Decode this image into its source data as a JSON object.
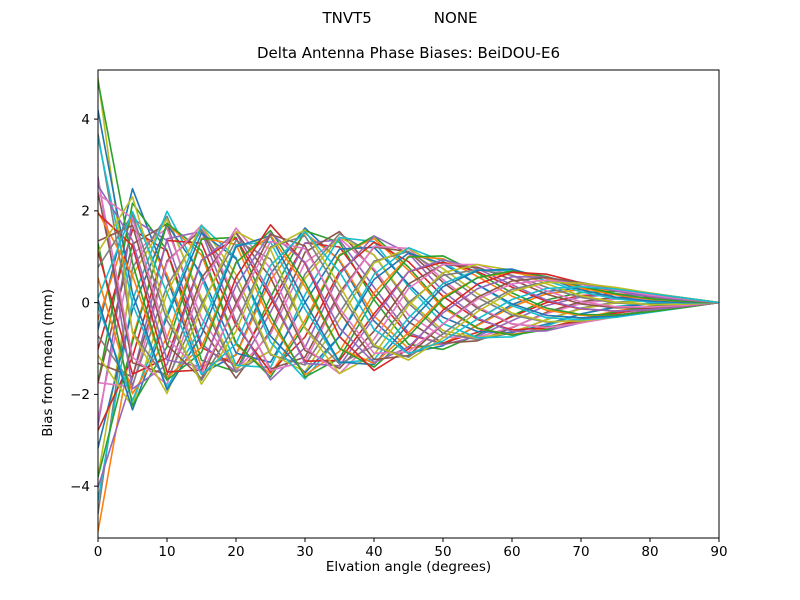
{
  "chart_data": {
    "type": "line",
    "suptitle": "TNVT5             NONE",
    "title": "Delta Antenna Phase Biases: BeiDOU-E6",
    "xlabel": "Elvation angle (degrees)",
    "ylabel": "Bias from mean (mm)",
    "xlim": [
      0,
      90
    ],
    "ylim": [
      -5.13,
      5.07
    ],
    "x_ticks": [
      0,
      10,
      20,
      30,
      40,
      50,
      60,
      70,
      80,
      90
    ],
    "y_ticks": [
      -4,
      -2,
      0,
      2,
      4
    ],
    "grid": false,
    "legend": null,
    "n_series": 40,
    "palette": [
      "#1f77b4",
      "#ff7f0e",
      "#2ca02c",
      "#d62728",
      "#9467bd",
      "#8c564b",
      "#e377c2",
      "#7f7f7f",
      "#bcbd22",
      "#17becf"
    ],
    "x_deg": [
      0,
      5,
      10,
      15,
      20,
      25,
      30,
      35,
      40,
      45,
      50,
      55,
      60,
      65,
      70,
      75,
      80,
      85,
      90
    ],
    "envelope_mm": [
      2.3,
      2.18,
      2.02,
      1.82,
      1.68,
      1.7,
      1.7,
      1.6,
      1.5,
      1.28,
      1.02,
      0.86,
      0.76,
      0.62,
      0.46,
      0.34,
      0.22,
      0.11,
      0.0
    ],
    "phase_rad": [
      14.2,
      12.67,
      11.22,
      9.86,
      8.59,
      7.41,
      6.31,
      5.3,
      4.38,
      3.55,
      2.8,
      2.15,
      1.58,
      1.1,
      0.7,
      0.39,
      0.18,
      0.04,
      0.0
    ],
    "spike": {
      "width_deg": 6.5,
      "exponent": 1.3
    },
    "values_note": "40 unlabeled overlapping series converging to 0 mm at 90 deg; each curve approximated by y(e)=s*env(e)*cos(phase(e)+p)*(1+k*max(0,1-e/width)^exp) sampled on x_deg",
    "series": [
      {
        "p": 0.05,
        "s": 0.96,
        "k": 1.35
      },
      {
        "p": 0.117,
        "s": 0.9,
        "k": 0
      },
      {
        "p": 0.374,
        "s": 1.0,
        "k": 0.8
      },
      {
        "p": 0.471,
        "s": 0.87,
        "k": 0
      },
      {
        "p": 0.578,
        "s": 0.93,
        "k": 1.1
      },
      {
        "p": 0.825,
        "s": 0.98,
        "k": 0
      },
      {
        "p": 0.922,
        "s": 0.88,
        "k": 0.5
      },
      {
        "p": 1.149,
        "s": 0.95,
        "k": 1.25
      },
      {
        "p": 1.197,
        "s": 0.91,
        "k": 0.9
      },
      {
        "p": 1.443,
        "s": 0.99,
        "k": 0.9
      },
      {
        "p": 1.541,
        "s": 0.86,
        "k": 0.6
      },
      {
        "p": 1.787,
        "s": 0.94,
        "k": 1.4
      },
      {
        "p": 1.835,
        "s": 0.97,
        "k": 0.8
      },
      {
        "p": 2.062,
        "s": 0.89,
        "k": 0.6
      },
      {
        "p": 2.158,
        "s": 1.0,
        "k": 1.2
      },
      {
        "p": 2.405,
        "s": 0.92,
        "k": 0
      },
      {
        "p": 2.453,
        "s": 0.96,
        "k": 0.35
      },
      {
        "p": 2.709,
        "s": 0.87,
        "k": 0
      },
      {
        "p": 2.807,
        "s": 0.93,
        "k": 1.0
      },
      {
        "p": 3.043,
        "s": 0.98,
        "k": 0
      },
      {
        "p": 3.091,
        "s": 0.9,
        "k": 1.3
      },
      {
        "p": 3.328,
        "s": 0.95,
        "k": 0
      },
      {
        "p": 3.415,
        "s": 1.0,
        "k": 0.7
      },
      {
        "p": 3.662,
        "s": 0.88,
        "k": 0
      },
      {
        "p": 3.709,
        "s": 0.94,
        "k": 1.15
      },
      {
        "p": 3.947,
        "s": 0.91,
        "k": 0.5
      },
      {
        "p": 4.053,
        "s": 0.97,
        "k": 0.45
      },
      {
        "p": 4.301,
        "s": 0.85,
        "k": 1.0
      },
      {
        "p": 4.348,
        "s": 0.99,
        "k": 1.25
      },
      {
        "p": 4.595,
        "s": 0.92,
        "k": 0.7
      },
      {
        "p": 4.692,
        "s": 0.96,
        "k": 0.9
      },
      {
        "p": 4.919,
        "s": 0.89,
        "k": 0
      },
      {
        "p": 4.966,
        "s": 0.94,
        "k": 1.35
      },
      {
        "p": 5.214,
        "s": 1.0,
        "k": 0
      },
      {
        "p": 5.3,
        "s": 0.9,
        "k": 0.55
      },
      {
        "p": 5.558,
        "s": 0.95,
        "k": 0
      },
      {
        "p": 5.605,
        "s": 0.87,
        "k": 1.05
      },
      {
        "p": 5.852,
        "s": 0.93,
        "k": 0
      },
      {
        "p": 5.938,
        "s": 0.98,
        "k": 0.75
      },
      {
        "p": 6.175,
        "s": 0.91,
        "k": 0
      }
    ]
  }
}
